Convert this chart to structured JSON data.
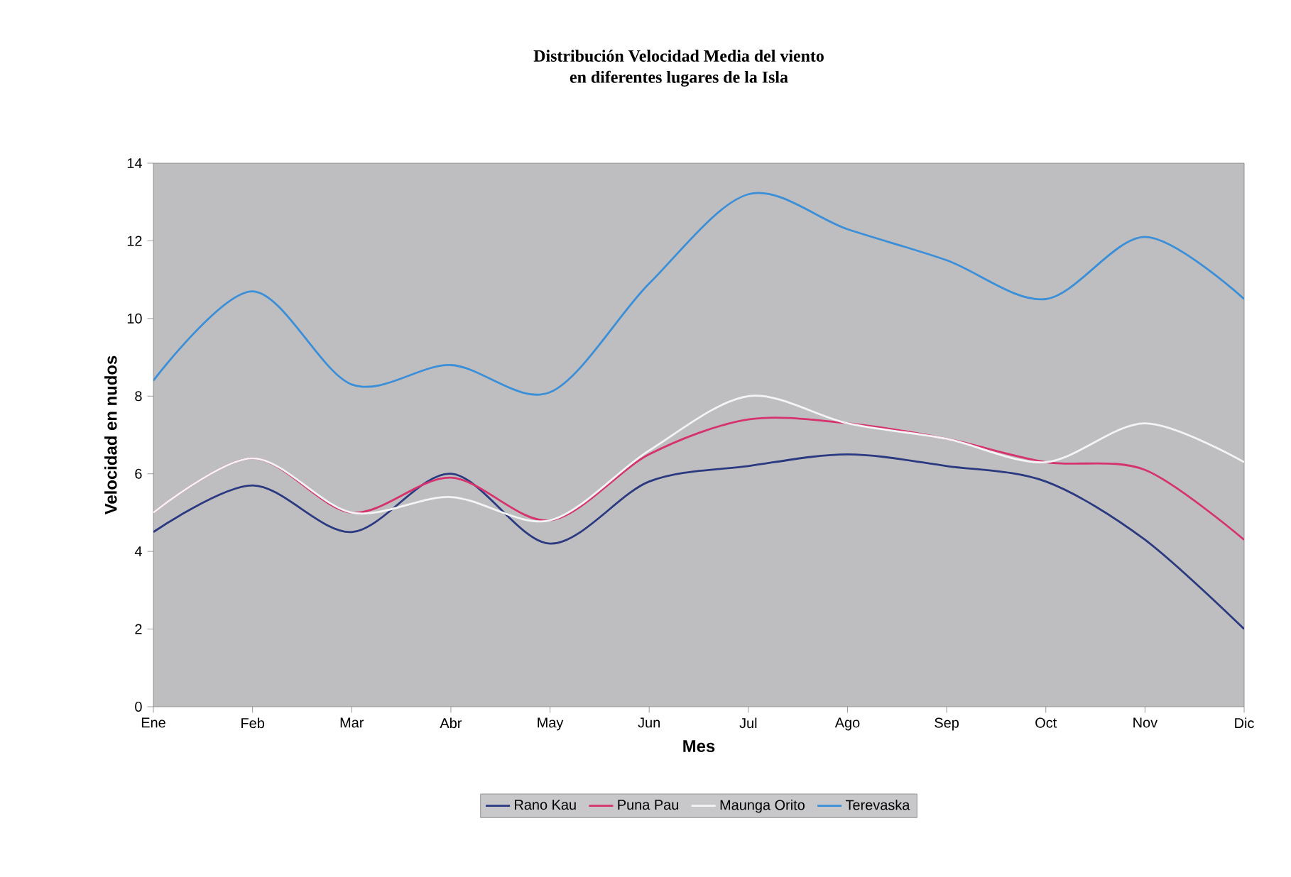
{
  "chart_data": {
    "type": "line",
    "title": "Distribución Velocidad Media del viento\nen diferentes lugares de la Isla",
    "xlabel": "Mes",
    "ylabel": "Velocidad en nudos",
    "categories": [
      "Ene",
      "Feb",
      "Mar",
      "Abr",
      "May",
      "Jun",
      "Jul",
      "Ago",
      "Sep",
      "Oct",
      "Nov",
      "Dic"
    ],
    "series": [
      {
        "name": "Rano Kau",
        "color": "#2b3a80",
        "values": [
          4.5,
          5.7,
          4.5,
          6.0,
          4.2,
          5.8,
          6.2,
          6.5,
          6.2,
          5.8,
          4.3,
          2.0
        ]
      },
      {
        "name": "Puna Pau",
        "color": "#d6336e",
        "values": [
          5.0,
          6.4,
          5.0,
          5.9,
          4.8,
          6.5,
          7.4,
          7.3,
          6.9,
          6.3,
          6.1,
          4.3
        ]
      },
      {
        "name": "Maunga Orito",
        "color": "#f4f4f4",
        "values": [
          5.0,
          6.4,
          5.0,
          5.4,
          4.8,
          6.6,
          8.0,
          7.3,
          6.9,
          6.3,
          7.3,
          6.3
        ]
      },
      {
        "name": "Terevaska",
        "color": "#3a8fd8",
        "values": [
          8.4,
          10.7,
          8.3,
          8.8,
          8.1,
          10.9,
          13.2,
          12.3,
          11.5,
          10.5,
          12.1,
          10.5
        ]
      }
    ],
    "ylim": [
      0,
      14
    ],
    "yticks": [
      0,
      2,
      4,
      6,
      8,
      10,
      12,
      14
    ],
    "grid": false,
    "legend": "bottom",
    "marker": "none",
    "line_style": "solid"
  }
}
